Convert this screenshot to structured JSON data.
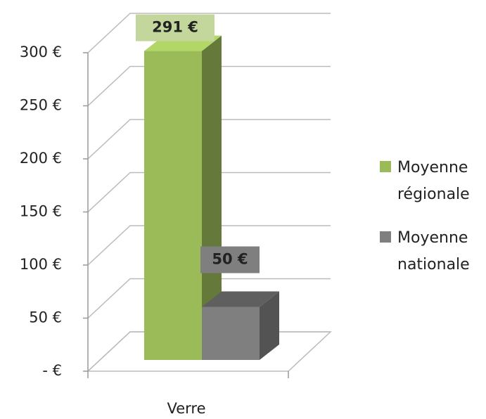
{
  "chart_data": {
    "type": "bar3d",
    "categories": [
      "Verre"
    ],
    "series": [
      {
        "name": "Moyenne régionale",
        "color": "#9bbb59",
        "values": [
          291
        ],
        "value_labels": [
          "291 €"
        ]
      },
      {
        "name": "Moyenne nationale",
        "color": "#7f7f7f",
        "values": [
          50
        ],
        "value_labels": [
          "50 €"
        ]
      }
    ],
    "ylim": [
      0,
      300
    ],
    "yticks": [
      {
        "value": 0,
        "label": "-  €"
      },
      {
        "value": 50,
        "label": "50 €"
      },
      {
        "value": 100,
        "label": "100 €"
      },
      {
        "value": 150,
        "label": "150 €"
      },
      {
        "value": 200,
        "label": "200 €"
      },
      {
        "value": 250,
        "label": "250 €"
      },
      {
        "value": 300,
        "label": "300 €"
      }
    ],
    "grid": true,
    "legend": "right"
  }
}
